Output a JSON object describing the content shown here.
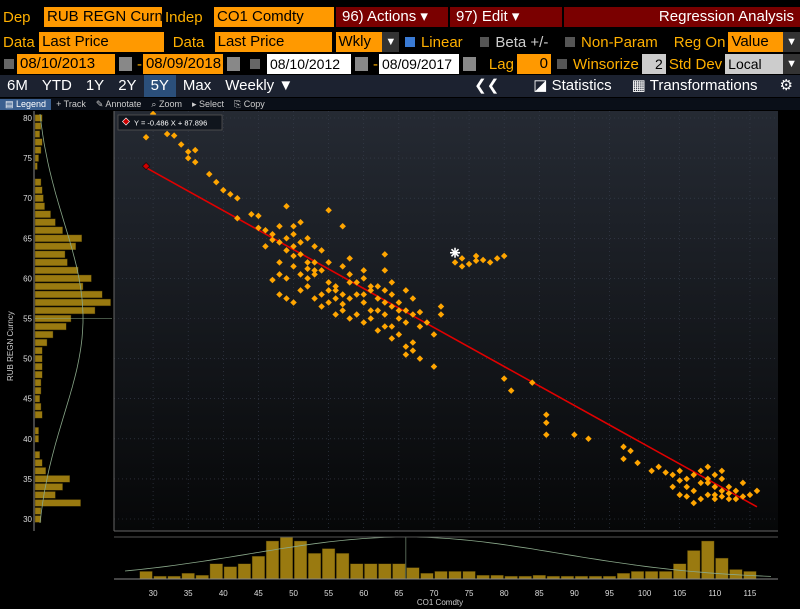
{
  "header": {
    "dep_label": "Dep",
    "dep_value": "RUB REGN Curn",
    "indep_label": "Indep",
    "indep_value": "CO1 Comdty",
    "actions": "96) Actions",
    "edit": "97) Edit",
    "title": "Regression Analysis"
  },
  "row2": {
    "data_label1": "Data",
    "data_value1": "Last Price",
    "data_label2": "Data",
    "data_value2": "Last Price",
    "period": "Wkly",
    "linear": "Linear",
    "beta": "Beta +/-",
    "nonparam": "Non-Param",
    "regon_label": "Reg On",
    "regon_value": "Value"
  },
  "row3": {
    "date1": "08/10/2013",
    "dash1": "-",
    "date2": "08/09/2018",
    "date3": "08/10/2012",
    "dash2": "-",
    "date4": "08/09/2017",
    "lag_label": "Lag",
    "lag_value": "0",
    "winsorize": "Winsorize",
    "std_value": "2",
    "std_label": "Std Dev",
    "local": "Local"
  },
  "tabs": {
    "t6m": "6M",
    "tytd": "YTD",
    "t1y": "1Y",
    "t2y": "2Y",
    "t5y": "5Y",
    "tmax": "Max",
    "weekly": "Weekly ▼",
    "back": "❮❮",
    "statistics": "Statistics",
    "transformations": "Transformations"
  },
  "toolbar": {
    "legend": "Legend",
    "track": "Track",
    "annotate": "Annotate",
    "zoom": "Zoom",
    "select": "Select",
    "copy": "Copy"
  },
  "colors": {
    "points": "#ffa500",
    "line": "#e00000",
    "bars": "#9a7a10",
    "accent": "#ff9900"
  },
  "chart_data": {
    "type": "scatter",
    "xlabel": "CO1 Comdty",
    "ylabel": "RUB REGN Curncy",
    "legend": "Y = -0.486 X + 87.896",
    "xlim": [
      26,
      118
    ],
    "ylim": [
      29.5,
      80.5
    ],
    "xticks": [
      30,
      35,
      40,
      45,
      50,
      55,
      60,
      65,
      70,
      75,
      80,
      85,
      90,
      95,
      100,
      105,
      110,
      115
    ],
    "yticks": [
      30,
      35,
      40,
      45,
      50,
      55,
      60,
      65,
      70,
      75,
      80
    ],
    "regression": {
      "slope": -0.486,
      "intercept": 87.896,
      "x_start": 29,
      "x_end": 116
    },
    "points": [
      [
        29,
        77.6
      ],
      [
        30,
        80.5
      ],
      [
        31,
        79.5
      ],
      [
        32,
        78.0
      ],
      [
        33,
        77.8
      ],
      [
        34,
        76.7
      ],
      [
        35,
        75.8
      ],
      [
        35,
        75.0
      ],
      [
        36,
        74.5
      ],
      [
        36,
        76.0
      ],
      [
        38,
        73.0
      ],
      [
        39,
        72.0
      ],
      [
        40,
        71.0
      ],
      [
        41,
        70.5
      ],
      [
        42,
        70.0
      ],
      [
        42,
        67.5
      ],
      [
        44,
        68.0
      ],
      [
        45,
        67.8
      ],
      [
        45,
        66.3
      ],
      [
        46,
        66.0
      ],
      [
        47,
        65.5
      ],
      [
        47,
        64.8
      ],
      [
        48,
        64.5
      ],
      [
        48,
        66.5
      ],
      [
        49,
        65.0
      ],
      [
        49,
        63.5
      ],
      [
        50,
        65.5
      ],
      [
        50,
        64.0
      ],
      [
        50,
        62.8
      ],
      [
        51,
        64.5
      ],
      [
        51,
        63.0
      ],
      [
        52,
        62.0
      ],
      [
        52,
        61.2
      ],
      [
        53,
        62.0
      ],
      [
        53,
        60.5
      ],
      [
        54,
        61.0
      ],
      [
        55,
        59.5
      ],
      [
        55,
        58.5
      ],
      [
        56,
        59.0
      ],
      [
        56,
        57.5
      ],
      [
        57,
        58.0
      ],
      [
        57,
        56.8
      ],
      [
        58,
        57.5
      ],
      [
        58,
        59.5
      ],
      [
        59,
        58.0
      ],
      [
        60,
        60.0
      ],
      [
        60,
        57.0
      ],
      [
        61,
        58.5
      ],
      [
        61,
        56.0
      ],
      [
        62,
        57.5
      ],
      [
        62,
        59.0
      ],
      [
        63,
        58.5
      ],
      [
        63,
        57.0
      ],
      [
        64,
        58.0
      ],
      [
        64,
        56.5
      ],
      [
        65,
        56.0
      ],
      [
        65,
        55.0
      ],
      [
        66,
        56.0
      ],
      [
        66,
        54.5
      ],
      [
        67,
        55.5
      ],
      [
        68,
        54.0
      ],
      [
        68,
        55.8
      ],
      [
        69,
        54.5
      ],
      [
        70,
        53.0
      ],
      [
        71,
        55.5
      ],
      [
        71,
        56.5
      ],
      [
        63,
        61.0
      ],
      [
        60,
        61.0
      ],
      [
        58,
        62.5
      ],
      [
        57,
        61.5
      ],
      [
        55,
        62.0
      ],
      [
        54,
        63.5
      ],
      [
        53,
        61.0
      ],
      [
        51,
        60.5
      ],
      [
        50,
        61.5
      ],
      [
        49,
        60.0
      ],
      [
        48,
        60.5
      ],
      [
        47,
        59.8
      ],
      [
        48,
        58.0
      ],
      [
        49,
        57.5
      ],
      [
        50,
        57.0
      ],
      [
        51,
        58.5
      ],
      [
        52,
        59.0
      ],
      [
        53,
        57.5
      ],
      [
        54,
        56.5
      ],
      [
        55,
        57.0
      ],
      [
        56,
        55.5
      ],
      [
        57,
        56.0
      ],
      [
        58,
        55.0
      ],
      [
        59,
        55.5
      ],
      [
        60,
        54.5
      ],
      [
        61,
        55.0
      ],
      [
        62,
        53.5
      ],
      [
        63,
        54.0
      ],
      [
        64,
        52.5
      ],
      [
        65,
        53.0
      ],
      [
        66,
        51.5
      ],
      [
        67,
        51.0
      ],
      [
        66,
        50.5
      ],
      [
        67,
        52.0
      ],
      [
        68,
        50.0
      ],
      [
        70,
        49.0
      ],
      [
        49,
        69.0
      ],
      [
        51,
        67.0
      ],
      [
        55,
        68.5
      ],
      [
        57,
        66.5
      ],
      [
        52,
        65.0
      ],
      [
        53,
        64.0
      ],
      [
        48,
        62.0
      ],
      [
        50,
        66.5
      ],
      [
        46,
        64.0
      ],
      [
        52,
        60.0
      ],
      [
        54,
        58.0
      ],
      [
        56,
        58.5
      ],
      [
        61,
        59.0
      ],
      [
        60,
        58.0
      ],
      [
        62,
        56.0
      ],
      [
        63,
        55.5
      ],
      [
        64,
        54.0
      ],
      [
        65,
        57.0
      ],
      [
        59,
        59.5
      ],
      [
        58,
        60.5
      ],
      [
        63,
        63.0
      ],
      [
        64,
        59.5
      ],
      [
        66,
        58.5
      ],
      [
        67,
        57.5
      ],
      [
        73,
        62.0
      ],
      [
        74,
        62.5
      ],
      [
        75,
        61.8
      ],
      [
        76,
        62.8
      ],
      [
        77,
        62.3
      ],
      [
        78,
        62.0
      ],
      [
        79,
        62.5
      ],
      [
        80,
        62.8
      ],
      [
        74,
        61.5
      ],
      [
        76,
        62.2
      ],
      [
        80,
        47.5
      ],
      [
        81,
        46.0
      ],
      [
        84,
        47.0
      ],
      [
        86,
        43.0
      ],
      [
        86,
        42.0
      ],
      [
        86,
        40.5
      ],
      [
        90,
        40.5
      ],
      [
        92,
        40.0
      ],
      [
        97,
        39.0
      ],
      [
        98,
        38.5
      ],
      [
        97,
        37.5
      ],
      [
        99,
        37.0
      ],
      [
        101,
        36.0
      ],
      [
        102,
        36.5
      ],
      [
        103,
        35.8
      ],
      [
        104,
        35.5
      ],
      [
        105,
        36.0
      ],
      [
        106,
        35.0
      ],
      [
        106,
        34.0
      ],
      [
        107,
        35.5
      ],
      [
        107,
        33.5
      ],
      [
        108,
        34.5
      ],
      [
        108,
        32.5
      ],
      [
        109,
        35.0
      ],
      [
        109,
        36.5
      ],
      [
        109,
        33.0
      ],
      [
        110,
        34.0
      ],
      [
        110,
        35.5
      ],
      [
        110,
        32.5
      ],
      [
        111,
        33.5
      ],
      [
        111,
        35.0
      ],
      [
        111,
        36.0
      ],
      [
        112,
        34.0
      ],
      [
        112,
        32.5
      ],
      [
        113,
        33.5
      ],
      [
        114,
        34.5
      ],
      [
        114,
        32.8
      ],
      [
        115,
        33.0
      ],
      [
        116,
        33.5
      ],
      [
        105,
        33.0
      ],
      [
        106,
        32.8
      ],
      [
        107,
        32.0
      ],
      [
        108,
        36.0
      ],
      [
        109,
        34.5
      ],
      [
        110,
        33.0
      ],
      [
        112,
        33.2
      ],
      [
        113,
        32.5
      ],
      [
        104,
        34.0
      ],
      [
        105,
        34.8
      ],
      [
        111,
        32.8
      ]
    ],
    "highlight_point": [
      73,
      63.2
    ],
    "legend_point": [
      29,
      74.0
    ],
    "y_histogram": [
      [
        80,
        0.6
      ],
      [
        79,
        0.5
      ],
      [
        78,
        0.4
      ],
      [
        77,
        0.6
      ],
      [
        76,
        0.5
      ],
      [
        75,
        0.3
      ],
      [
        74,
        0.2
      ],
      [
        72,
        0.5
      ],
      [
        71,
        0.6
      ],
      [
        70,
        0.7
      ],
      [
        69,
        0.8
      ],
      [
        68,
        1.3
      ],
      [
        67,
        1.7
      ],
      [
        66,
        2.3
      ],
      [
        65,
        3.9
      ],
      [
        64,
        3.4
      ],
      [
        63,
        2.5
      ],
      [
        62,
        2.7
      ],
      [
        61,
        3.6
      ],
      [
        60,
        4.7
      ],
      [
        59,
        4.0
      ],
      [
        58,
        5.6
      ],
      [
        57,
        6.3
      ],
      [
        56,
        5.0
      ],
      [
        55,
        3.0
      ],
      [
        54,
        2.6
      ],
      [
        53,
        1.5
      ],
      [
        52,
        1.0
      ],
      [
        51,
        0.6
      ],
      [
        50,
        0.6
      ],
      [
        49,
        0.6
      ],
      [
        48,
        0.6
      ],
      [
        47,
        0.5
      ],
      [
        46,
        0.5
      ],
      [
        45,
        0.4
      ],
      [
        44,
        0.5
      ],
      [
        43,
        0.6
      ],
      [
        41,
        0.3
      ],
      [
        40,
        0.3
      ],
      [
        38,
        0.4
      ],
      [
        37,
        0.6
      ],
      [
        36,
        0.9
      ],
      [
        35,
        2.9
      ],
      [
        34,
        2.3
      ],
      [
        33,
        1.7
      ],
      [
        32,
        3.8
      ],
      [
        31,
        0.5
      ],
      [
        30,
        0.5
      ]
    ],
    "x_histogram": [
      [
        29,
        0.8
      ],
      [
        31,
        0.3
      ],
      [
        33,
        0.3
      ],
      [
        35,
        0.6
      ],
      [
        37,
        0.4
      ],
      [
        39,
        1.6
      ],
      [
        41,
        1.3
      ],
      [
        43,
        1.6
      ],
      [
        45,
        2.4
      ],
      [
        47,
        4.0
      ],
      [
        49,
        4.4
      ],
      [
        51,
        4.0
      ],
      [
        53,
        2.7
      ],
      [
        55,
        3.2
      ],
      [
        57,
        2.7
      ],
      [
        59,
        1.6
      ],
      [
        61,
        1.6
      ],
      [
        63,
        1.6
      ],
      [
        65,
        1.6
      ],
      [
        67,
        1.2
      ],
      [
        69,
        0.6
      ],
      [
        71,
        0.8
      ],
      [
        73,
        0.8
      ],
      [
        75,
        0.8
      ],
      [
        77,
        0.4
      ],
      [
        79,
        0.4
      ],
      [
        81,
        0.3
      ],
      [
        83,
        0.3
      ],
      [
        85,
        0.4
      ],
      [
        87,
        0.3
      ],
      [
        89,
        0.3
      ],
      [
        91,
        0.3
      ],
      [
        93,
        0.3
      ],
      [
        95,
        0.3
      ],
      [
        97,
        0.6
      ],
      [
        99,
        0.8
      ],
      [
        101,
        0.8
      ],
      [
        103,
        0.8
      ],
      [
        105,
        1.6
      ],
      [
        107,
        3.0
      ],
      [
        109,
        4.0
      ],
      [
        111,
        2.2
      ],
      [
        113,
        1.0
      ],
      [
        115,
        0.8
      ]
    ]
  }
}
